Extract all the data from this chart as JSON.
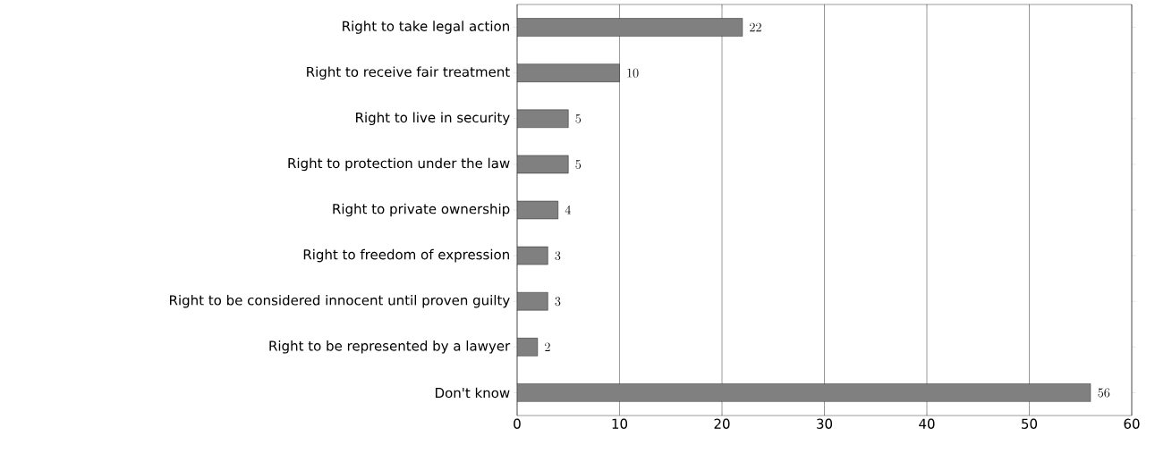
{
  "chart_data": {
    "type": "bar",
    "orientation": "horizontal",
    "categories": [
      "Right to take legal action",
      "Right to receive fair treatment",
      "Right to live in security",
      "Right to protection under the law",
      "Right to private ownership",
      "Right to freedom of expression",
      "Right to be considered innocent until proven guilty",
      "Right to be represented by a lawyer",
      "Don't know"
    ],
    "values": [
      22,
      10,
      5,
      5,
      4,
      3,
      3,
      2,
      56
    ],
    "color": "#808080",
    "xlim": [
      0,
      60
    ],
    "xticks": [
      0,
      10,
      20,
      30,
      40,
      50,
      60
    ],
    "grid": "x",
    "data_labels": true
  }
}
